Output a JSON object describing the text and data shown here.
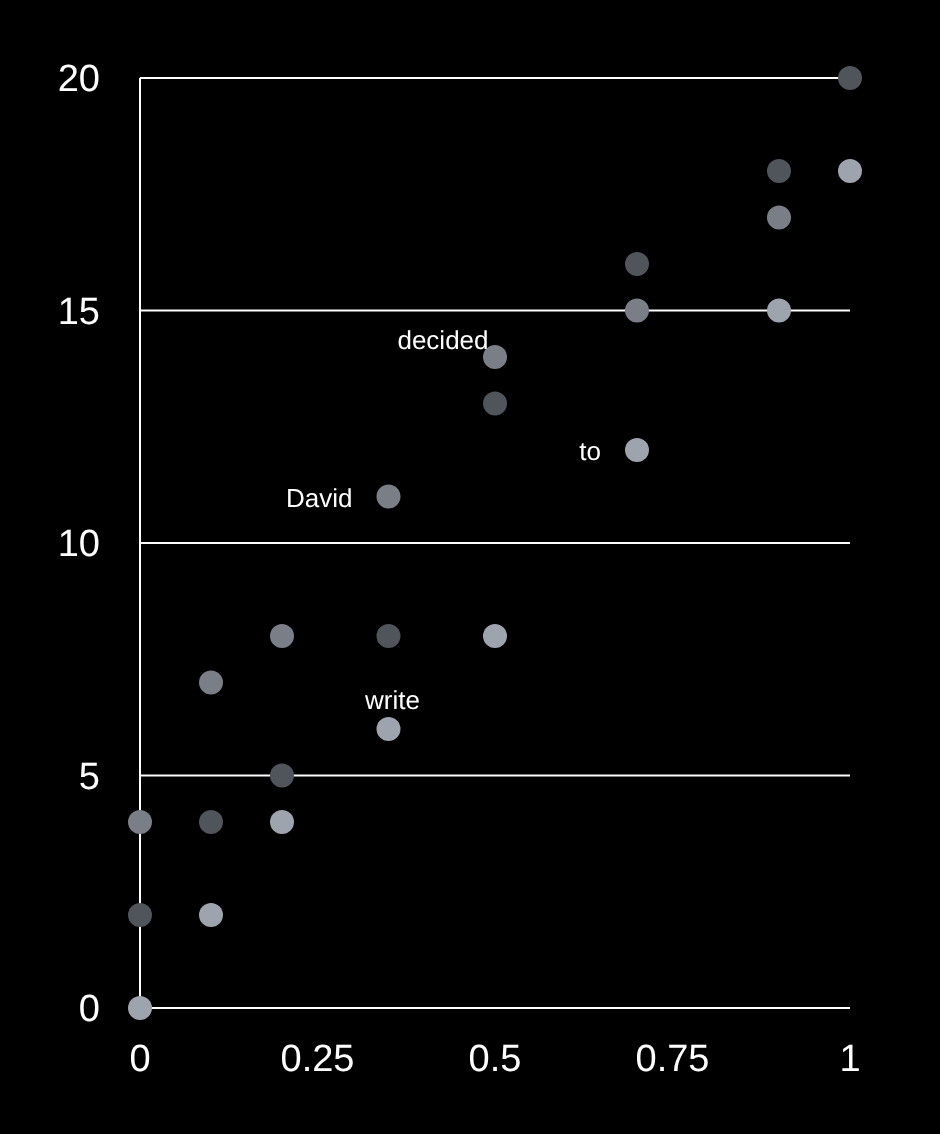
{
  "chart_data": {
    "type": "scatter",
    "xlim": [
      0,
      1
    ],
    "xticks": [
      0,
      0.25,
      0.5,
      0.75,
      1
    ],
    "ylim": [
      0,
      20
    ],
    "yticks": [
      0,
      5,
      10,
      15,
      20
    ],
    "grid": "y",
    "marker": "circle",
    "legend": false,
    "series": [
      {
        "color": "#50545b",
        "x": [
          0,
          0.1,
          0.2,
          0.35,
          0.5,
          0.7,
          0.9,
          1
        ],
        "values": [
          2,
          4,
          5,
          8,
          13,
          16,
          18,
          20
        ]
      },
      {
        "color": "#7a7e86",
        "x": [
          0,
          0.1,
          0.2,
          0.35,
          0.5,
          0.7,
          0.9
        ],
        "values": [
          4,
          7,
          8,
          11,
          14,
          15,
          17
        ]
      },
      {
        "color": "#9ea4ae",
        "x": [
          0,
          0.1,
          0.2,
          0.35,
          0.5,
          0.7,
          0.9,
          1
        ],
        "values": [
          0,
          2,
          4,
          6,
          8,
          12,
          15,
          18
        ]
      }
    ],
    "annotations": [
      {
        "text": "David",
        "x": 0.35,
        "y": 11
      },
      {
        "text": "decided",
        "x": 0.5,
        "y": 14
      },
      {
        "text": "to",
        "x": 0.7,
        "y": 12
      },
      {
        "text": "write",
        "x": 0.35,
        "y": 6
      }
    ]
  }
}
